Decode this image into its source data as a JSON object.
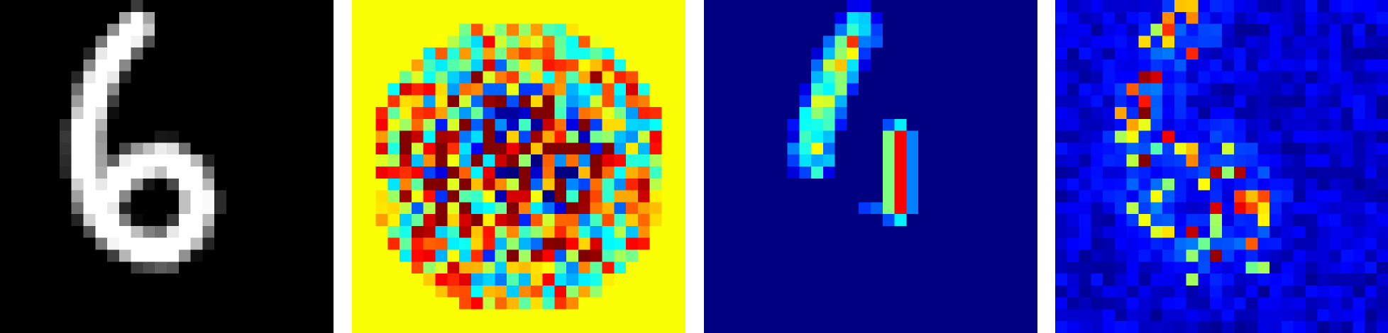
{
  "figure": {
    "grid_size": 28,
    "panels": [
      {
        "id": "input-digit",
        "colormap": "gray"
      },
      {
        "id": "signed-weight-map",
        "colormap": "jet"
      },
      {
        "id": "positive-attribution-map",
        "colormap": "jet"
      },
      {
        "id": "noisy-saliency-map",
        "colormap": "jet"
      }
    ]
  },
  "colors": {
    "page_background": "#ffffff",
    "jet_low": "#00007f",
    "jet_mid": "#7fff7f",
    "jet_high": "#7f0000"
  }
}
